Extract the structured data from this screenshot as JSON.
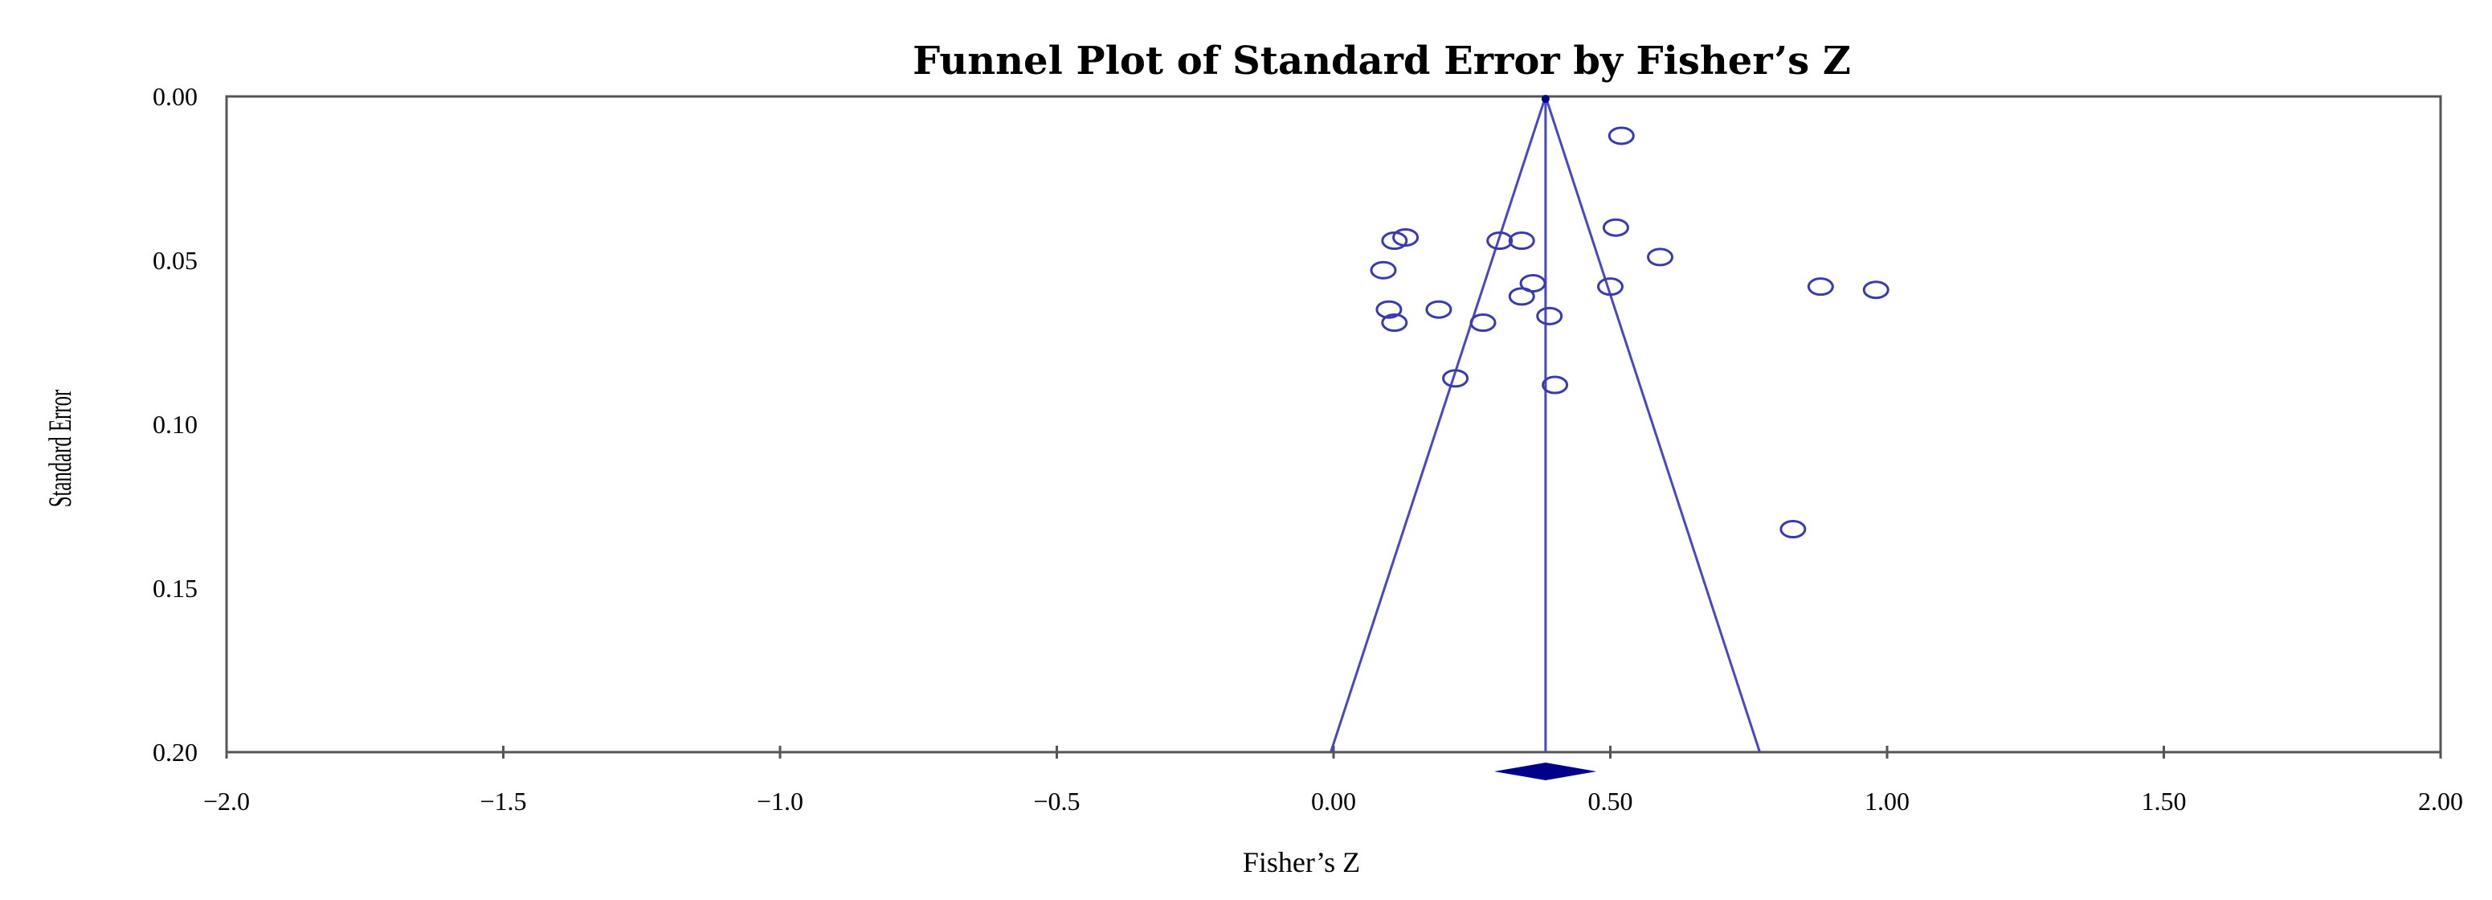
{
  "chart_data": {
    "type": "scatter",
    "title": "Funnel Plot of Standard Error  by Fisher’s  Z",
    "xlabel": "Fisher’s  Z",
    "ylabel": "Standard Error",
    "xlim": [
      -2.0,
      2.0
    ],
    "ylim": [
      0.0,
      0.2
    ],
    "y_inverted": true,
    "x_ticks": [
      "−2.0",
      "−1.5",
      "−1.0",
      "−0.5",
      "0.00",
      "0.50",
      "1.00",
      "1.50",
      "2.00"
    ],
    "x_tick_values": [
      -2.0,
      -1.5,
      -1.0,
      -0.5,
      0.0,
      0.5,
      1.0,
      1.5,
      2.0
    ],
    "y_ticks": [
      "0.00",
      "0.05",
      "0.10",
      "0.15",
      "0.20"
    ],
    "y_tick_values": [
      0.0,
      0.05,
      0.1,
      0.15,
      0.2
    ],
    "pooled_estimate": 0.383,
    "funnel": {
      "apex_se": 0.0,
      "base_se": 0.2,
      "lower_x_at_base": -0.005,
      "upper_x_at_base": 0.77
    },
    "diamond": {
      "center": 0.383,
      "low": 0.29,
      "high": 0.475
    },
    "points": [
      {
        "x": 0.52,
        "y": 0.012
      },
      {
        "x": 0.51,
        "y": 0.04
      },
      {
        "x": 0.59,
        "y": 0.049
      },
      {
        "x": 0.13,
        "y": 0.043
      },
      {
        "x": 0.11,
        "y": 0.044
      },
      {
        "x": 0.3,
        "y": 0.044
      },
      {
        "x": 0.34,
        "y": 0.044
      },
      {
        "x": 0.09,
        "y": 0.053
      },
      {
        "x": 0.36,
        "y": 0.057
      },
      {
        "x": 0.34,
        "y": 0.061
      },
      {
        "x": 0.5,
        "y": 0.058
      },
      {
        "x": 0.88,
        "y": 0.058
      },
      {
        "x": 0.98,
        "y": 0.059
      },
      {
        "x": 0.1,
        "y": 0.065
      },
      {
        "x": 0.19,
        "y": 0.065
      },
      {
        "x": 0.11,
        "y": 0.069
      },
      {
        "x": 0.27,
        "y": 0.069
      },
      {
        "x": 0.39,
        "y": 0.067
      },
      {
        "x": 0.22,
        "y": 0.086
      },
      {
        "x": 0.4,
        "y": 0.088
      },
      {
        "x": 0.83,
        "y": 0.132
      }
    ],
    "colors": {
      "marker": "#3a3ab0",
      "funnel": "#4848c0",
      "diamond": "#00008b",
      "axis": "#555555"
    }
  }
}
